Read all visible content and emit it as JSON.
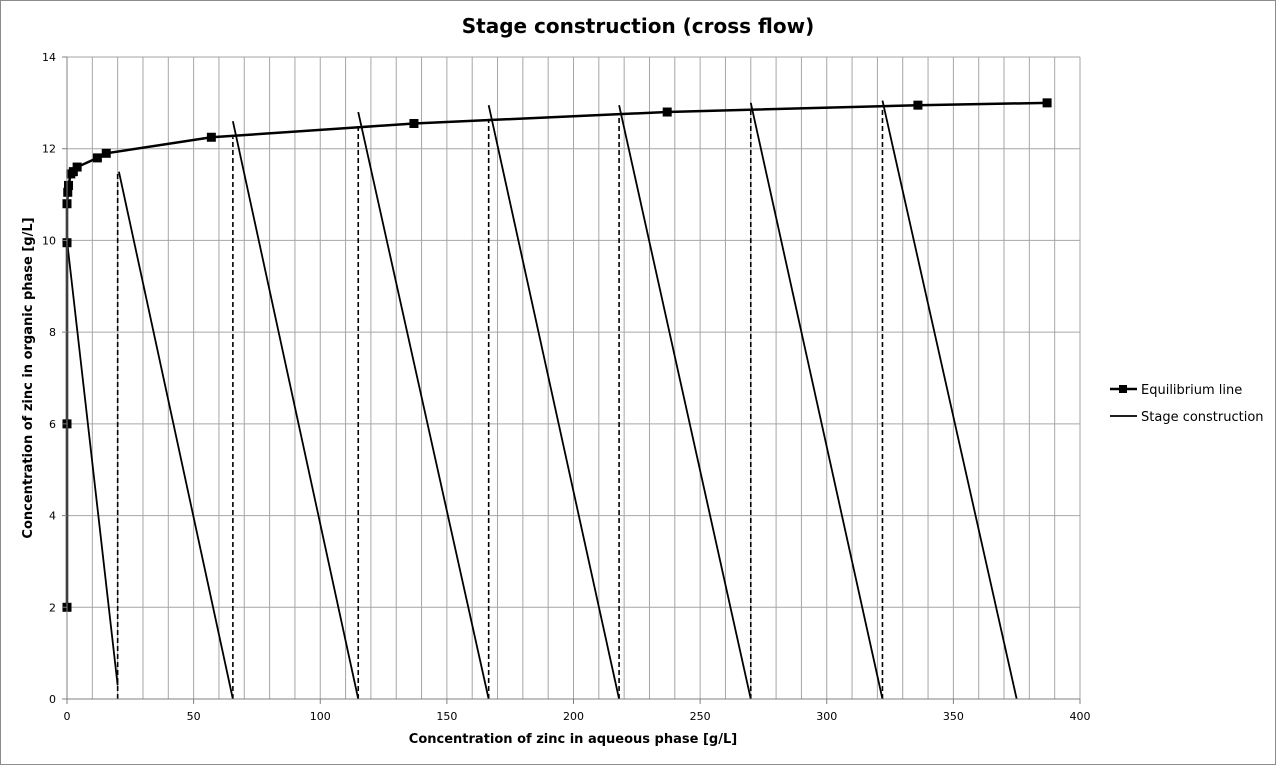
{
  "chart_data": {
    "type": "scatter",
    "title": "Stage construction (cross flow)",
    "xlabel": "Concentration of zinc in aqueous phase [g/L]",
    "ylabel": "Concentration of zinc in organic phase [g/L]",
    "xlim": [
      0,
      400
    ],
    "ylim": [
      0,
      14
    ],
    "x_ticks": [
      0,
      50,
      100,
      150,
      200,
      250,
      300,
      350,
      400
    ],
    "y_ticks": [
      0,
      2,
      4,
      6,
      8,
      10,
      12,
      14
    ],
    "x_minor_gridline_step": 10,
    "grid": true,
    "legend_position": "right",
    "series": [
      {
        "name": "Equilibrium line",
        "style": "line-with-square-markers",
        "color": "#000000",
        "points": [
          [
            0,
            2.0
          ],
          [
            0,
            6.0
          ],
          [
            0,
            9.95
          ],
          [
            0,
            10.8
          ],
          [
            0.3,
            11.05
          ],
          [
            0.6,
            11.2
          ],
          [
            1.5,
            11.45
          ],
          [
            2.5,
            11.5
          ],
          [
            4.0,
            11.6
          ],
          [
            12,
            11.8
          ],
          [
            15.5,
            11.9
          ],
          [
            57,
            12.25
          ],
          [
            137,
            12.55
          ],
          [
            237,
            12.8
          ],
          [
            336,
            12.95
          ],
          [
            387,
            13.0
          ]
        ]
      },
      {
        "name": "Stage construction",
        "style": "solid-line",
        "color": "#000000",
        "segments": [
          [
            [
              0,
              10.0
            ],
            [
              20,
              0.3
            ]
          ],
          [
            [
              20.5,
              11.5
            ],
            [
              65.5,
              0
            ]
          ],
          [
            [
              65.5,
              12.6
            ],
            [
              115,
              0
            ]
          ],
          [
            [
              115,
              12.8
            ],
            [
              166.5,
              0
            ]
          ],
          [
            [
              166.5,
              12.95
            ],
            [
              218,
              0
            ]
          ],
          [
            [
              218,
              12.95
            ],
            [
              270,
              0
            ]
          ],
          [
            [
              270,
              13.0
            ],
            [
              322,
              0
            ]
          ],
          [
            [
              322,
              13.05
            ],
            [
              375,
              0
            ]
          ]
        ]
      },
      {
        "style": "dashed-vertical-lines",
        "color": "#000000",
        "segments": [
          [
            [
              20,
              0
            ],
            [
              20,
              11.5
            ]
          ],
          [
            [
              65.5,
              0
            ],
            [
              65.5,
              12.25
            ]
          ],
          [
            [
              115,
              0
            ],
            [
              115,
              12.5
            ]
          ],
          [
            [
              166.5,
              0
            ],
            [
              166.5,
              12.65
            ]
          ],
          [
            [
              218,
              0
            ],
            [
              218,
              12.75
            ]
          ],
          [
            [
              270,
              0
            ],
            [
              270,
              12.85
            ]
          ],
          [
            [
              322,
              0
            ],
            [
              322,
              12.95
            ]
          ]
        ]
      }
    ],
    "legend": [
      {
        "label": "Equilibrium line",
        "marker": "square-line"
      },
      {
        "label": "Stage construction",
        "marker": "line"
      }
    ]
  }
}
